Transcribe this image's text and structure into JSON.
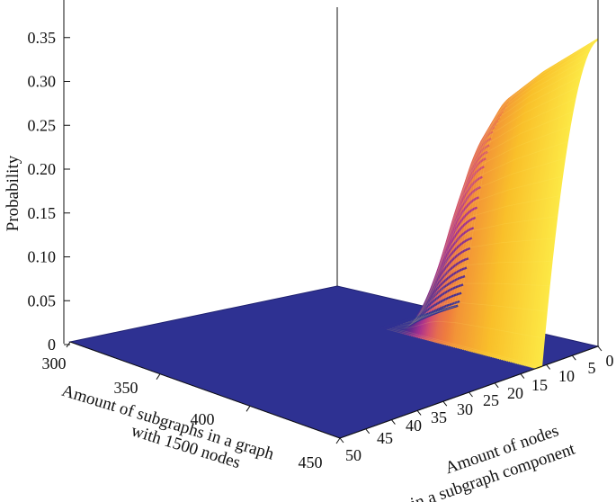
{
  "chart_data": {
    "type": "surface3d",
    "zlabel": "Probability",
    "xlabel_line1": "Amount of subgraphs in a graph",
    "xlabel_line2": "with 1500 nodes",
    "ylabel_line1": "Amount of nodes",
    "ylabel_line2": "in a subgraph component",
    "x_ticks": [
      "300",
      "350",
      "400",
      "450"
    ],
    "y_ticks": [
      "5",
      "10",
      "15",
      "20",
      "25",
      "30",
      "35",
      "40",
      "45",
      "50",
      "0"
    ],
    "z_ticks": [
      "0",
      "0.05",
      "0.10",
      "0.15",
      "0.20",
      "0.25",
      "0.30",
      "0.35"
    ],
    "xlim": [
      300,
      450
    ],
    "ylim": [
      0,
      50
    ],
    "zlim": [
      0,
      0.36
    ],
    "floor_color": "#2e3192",
    "colormap": [
      "#2e3192",
      "#6a2a8e",
      "#a8318e",
      "#d44f6e",
      "#ef7d3e",
      "#f9c02a",
      "#fdf04a"
    ],
    "ridge_profile": {
      "description_free": true,
      "x_onset": [
        300,
        310,
        320,
        330,
        340,
        350,
        360,
        370,
        375,
        380,
        385,
        390,
        400,
        420,
        450
      ],
      "peak_z_at_onset": [
        0.0,
        0.0,
        0.0,
        0.0,
        0.0,
        0.0,
        0.0,
        0.01,
        0.06,
        0.12,
        0.18,
        0.22,
        0.26,
        0.3,
        0.35
      ]
    }
  }
}
